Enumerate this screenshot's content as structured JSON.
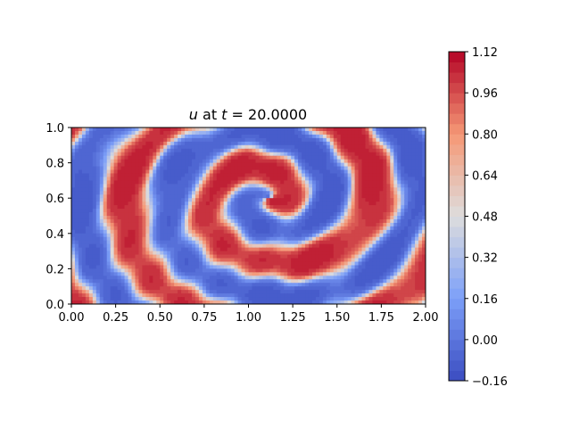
{
  "chart_data": {
    "type": "heatmap",
    "title": {
      "var": "u",
      "mid": " at ",
      "tvar": "t",
      "eq": " = 20.0000"
    },
    "xlim": [
      0.0,
      2.0
    ],
    "ylim": [
      0.0,
      1.0
    ],
    "xticks": [
      "0.00",
      "0.25",
      "0.50",
      "0.75",
      "1.00",
      "1.25",
      "1.50",
      "1.75",
      "2.00"
    ],
    "yticks": [
      "0.0",
      "0.2",
      "0.4",
      "0.6",
      "0.8",
      "1.0"
    ],
    "colorbar": {
      "min": -0.16,
      "max": 1.12,
      "levels": 32,
      "ticks": [
        "−0.16",
        "0.00",
        "0.16",
        "0.32",
        "0.48",
        "0.64",
        "0.80",
        "0.96",
        "1.12"
      ],
      "colormap": "coolwarm"
    },
    "field_description": "spiral pattern of contoured values, high (red) bands winding around a center near x=1.1, y=0.6",
    "colors": {
      "low": "#3b4cc0",
      "mid": "#dddddd",
      "high": "#b40426"
    }
  }
}
